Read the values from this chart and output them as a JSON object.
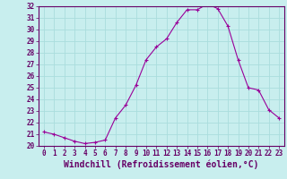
{
  "xlabel": "Windchill (Refroidissement éolien,°C)",
  "x": [
    0,
    1,
    2,
    3,
    4,
    5,
    6,
    7,
    8,
    9,
    10,
    11,
    12,
    13,
    14,
    15,
    16,
    17,
    18,
    19,
    20,
    21,
    22,
    23
  ],
  "y": [
    21.2,
    21.0,
    20.7,
    20.4,
    20.2,
    20.3,
    20.5,
    22.4,
    23.5,
    25.2,
    27.4,
    28.5,
    29.2,
    30.6,
    31.7,
    31.7,
    32.2,
    31.8,
    30.3,
    27.4,
    25.0,
    24.8,
    23.1,
    22.4
  ],
  "line_color": "#990099",
  "marker": "+",
  "bg_color": "#c8eeee",
  "grid_color": "#aadddd",
  "axes_color": "#660066",
  "text_color": "#660066",
  "ylim_min": 20,
  "ylim_max": 32,
  "yticks": [
    20,
    21,
    22,
    23,
    24,
    25,
    26,
    27,
    28,
    29,
    30,
    31,
    32
  ],
  "xticks": [
    0,
    1,
    2,
    3,
    4,
    5,
    6,
    7,
    8,
    9,
    10,
    11,
    12,
    13,
    14,
    15,
    16,
    17,
    18,
    19,
    20,
    21,
    22,
    23
  ],
  "tick_fontsize": 5.5,
  "xlabel_fontsize": 7.0,
  "line_width": 0.8,
  "marker_size": 3.5,
  "marker_edge_width": 0.8
}
